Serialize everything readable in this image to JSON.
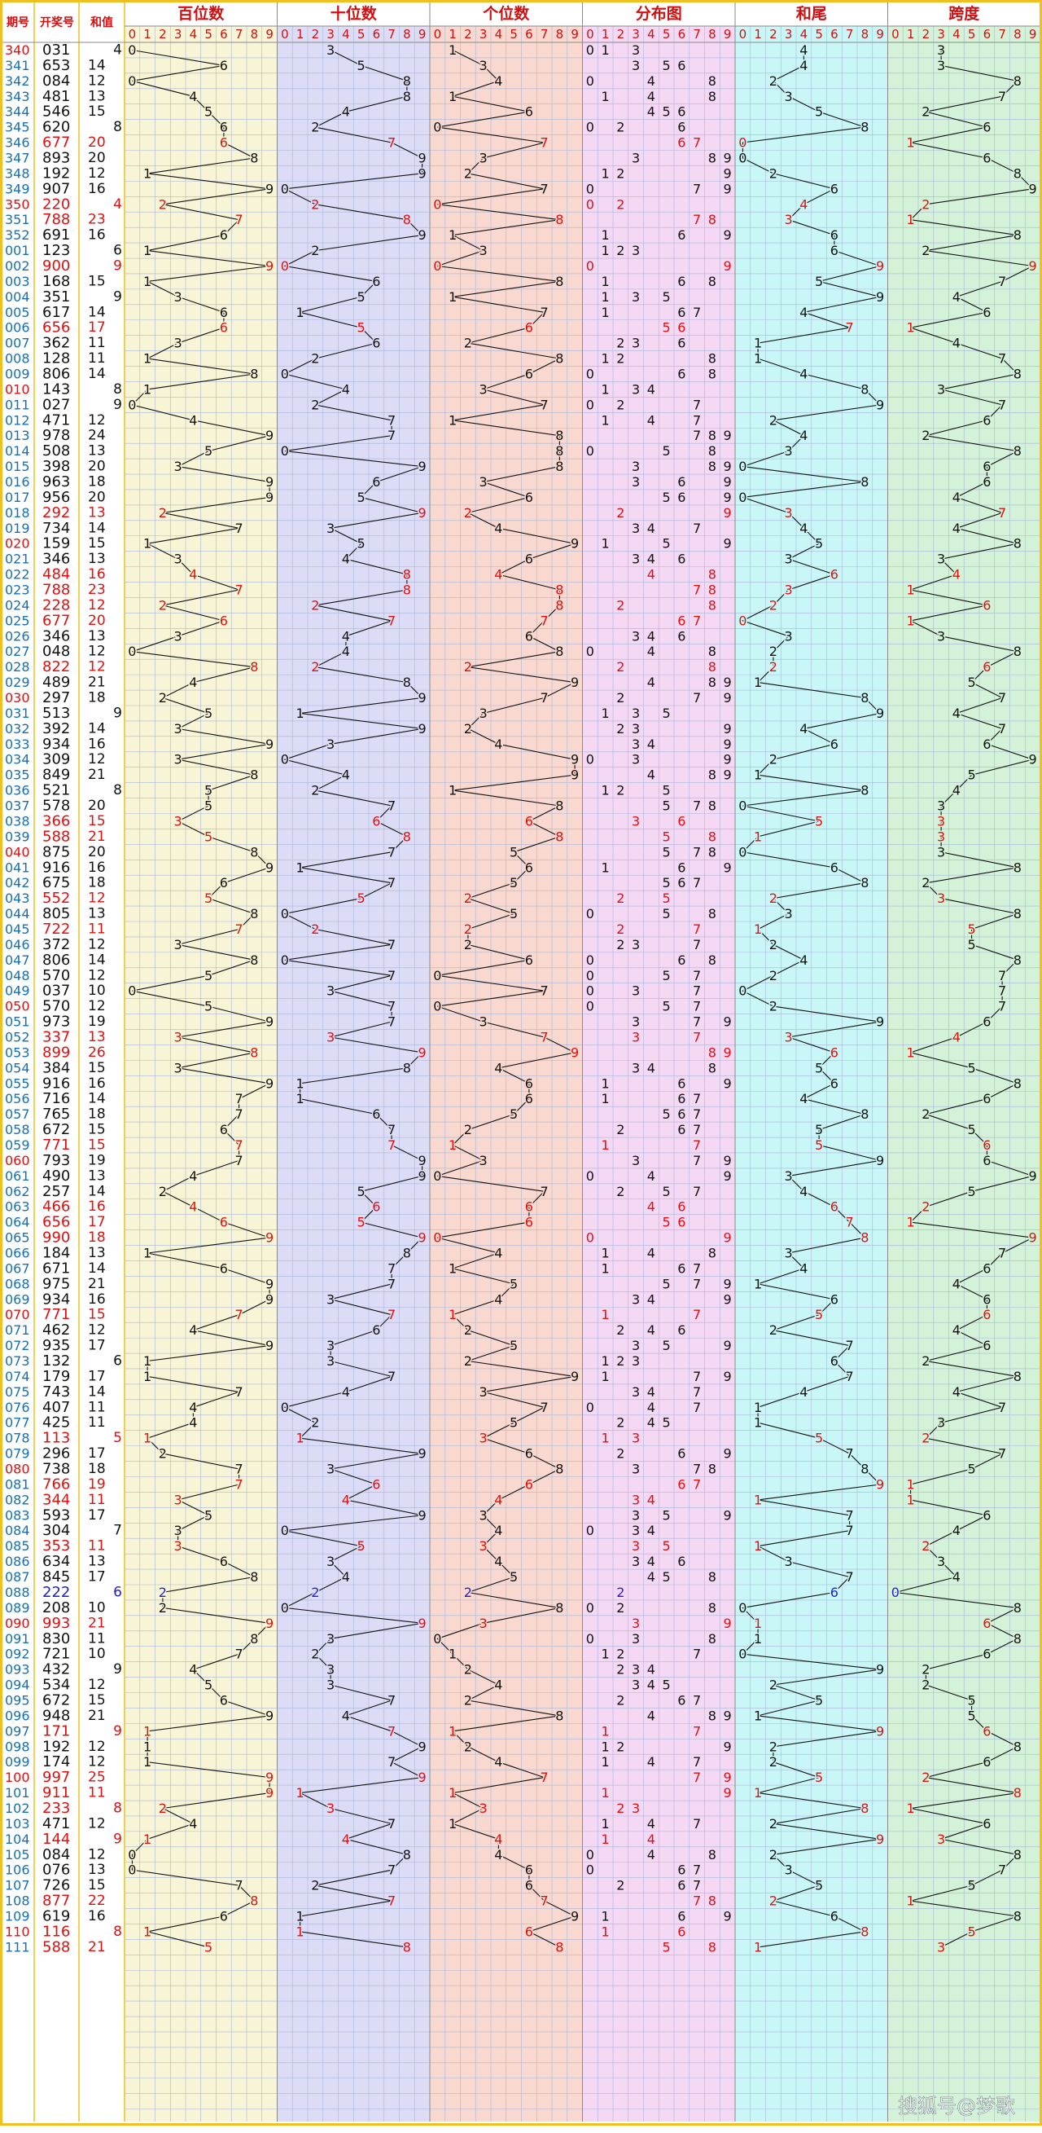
{
  "chart_data": {
    "type": "trend",
    "header": {
      "period": "期号",
      "number": "开奖号",
      "sum": "和值"
    },
    "groups": [
      "百位数",
      "十位数",
      "个位数",
      "分布图",
      "和尾",
      "跨度"
    ],
    "digits": [
      0,
      1,
      2,
      3,
      4,
      5,
      6,
      7,
      8,
      9
    ],
    "colors": {
      "line": "#111111",
      "text": "#111111",
      "pair": "#e01010",
      "leopard": "#2020d0",
      "period": "#1a6fb0",
      "period_mark": "#e01010",
      "header": "#d01010",
      "grid": "#a9b6d8",
      "border": "#efc020"
    },
    "group_backgrounds": [
      "#f8f5d6",
      "#dcdcf7",
      "#f8d8cf",
      "#f4d8f4",
      "#c9f7f7",
      "#d3f2d8"
    ],
    "rows": [
      [
        "340",
        "031",
        [
          0,
          3,
          1
        ],
        4,
        4,
        3
      ],
      [
        "341",
        "653",
        [
          6,
          5,
          3
        ],
        14,
        4,
        3
      ],
      [
        "342",
        "084",
        [
          0,
          8,
          4
        ],
        12,
        2,
        8
      ],
      [
        "343",
        "481",
        [
          4,
          8,
          1
        ],
        13,
        3,
        7
      ],
      [
        "344",
        "546",
        [
          5,
          4,
          6
        ],
        15,
        5,
        2
      ],
      [
        "345",
        "620",
        [
          6,
          2,
          0
        ],
        8,
        8,
        6
      ],
      [
        "346",
        "677",
        [
          6,
          7,
          7
        ],
        20,
        0,
        1
      ],
      [
        "347",
        "893",
        [
          8,
          9,
          3
        ],
        20,
        0,
        6
      ],
      [
        "348",
        "192",
        [
          1,
          9,
          2
        ],
        12,
        2,
        8
      ],
      [
        "349",
        "907",
        [
          9,
          0,
          7
        ],
        16,
        6,
        9
      ],
      [
        "350",
        "220",
        [
          2,
          2,
          0
        ],
        4,
        4,
        2
      ],
      [
        "351",
        "788",
        [
          7,
          8,
          8
        ],
        23,
        3,
        1
      ],
      [
        "352",
        "691",
        [
          6,
          9,
          1
        ],
        16,
        6,
        8
      ],
      [
        "001",
        "123",
        [
          1,
          2,
          3
        ],
        6,
        6,
        2
      ],
      [
        "002",
        "900",
        [
          9,
          0,
          0
        ],
        9,
        9,
        9
      ],
      [
        "003",
        "168",
        [
          1,
          6,
          8
        ],
        15,
        5,
        7
      ],
      [
        "004",
        "351",
        [
          3,
          5,
          1
        ],
        9,
        9,
        4
      ],
      [
        "005",
        "617",
        [
          6,
          1,
          7
        ],
        14,
        4,
        6
      ],
      [
        "006",
        "656",
        [
          6,
          5,
          6
        ],
        17,
        7,
        1
      ],
      [
        "007",
        "362",
        [
          3,
          6,
          2
        ],
        11,
        1,
        4
      ],
      [
        "008",
        "128",
        [
          1,
          2,
          8
        ],
        11,
        1,
        7
      ],
      [
        "009",
        "806",
        [
          8,
          0,
          6
        ],
        14,
        4,
        8
      ],
      [
        "010",
        "143",
        [
          1,
          4,
          3
        ],
        8,
        8,
        3
      ],
      [
        "011",
        "027",
        [
          0,
          2,
          7
        ],
        9,
        9,
        7
      ],
      [
        "012",
        "471",
        [
          4,
          7,
          1
        ],
        12,
        2,
        6
      ],
      [
        "013",
        "978",
        [
          9,
          7,
          8
        ],
        24,
        4,
        2
      ],
      [
        "014",
        "508",
        [
          5,
          0,
          8
        ],
        13,
        3,
        8
      ],
      [
        "015",
        "398",
        [
          3,
          9,
          8
        ],
        20,
        0,
        6
      ],
      [
        "016",
        "963",
        [
          9,
          6,
          3
        ],
        18,
        8,
        6
      ],
      [
        "017",
        "956",
        [
          9,
          5,
          6
        ],
        20,
        0,
        4
      ],
      [
        "018",
        "292",
        [
          2,
          9,
          2
        ],
        13,
        3,
        7
      ],
      [
        "019",
        "734",
        [
          7,
          3,
          4
        ],
        14,
        4,
        4
      ],
      [
        "020",
        "159",
        [
          1,
          5,
          9
        ],
        15,
        5,
        8
      ],
      [
        "021",
        "346",
        [
          3,
          4,
          6
        ],
        13,
        3,
        3
      ],
      [
        "022",
        "484",
        [
          4,
          8,
          4
        ],
        16,
        6,
        4
      ],
      [
        "023",
        "788",
        [
          7,
          8,
          8
        ],
        23,
        3,
        1
      ],
      [
        "024",
        "228",
        [
          2,
          2,
          8
        ],
        12,
        2,
        6
      ],
      [
        "025",
        "677",
        [
          6,
          7,
          7
        ],
        20,
        0,
        1
      ],
      [
        "026",
        "346",
        [
          3,
          4,
          6
        ],
        13,
        3,
        3
      ],
      [
        "027",
        "048",
        [
          0,
          4,
          8
        ],
        12,
        2,
        8
      ],
      [
        "028",
        "822",
        [
          8,
          2,
          2
        ],
        12,
        2,
        6
      ],
      [
        "029",
        "489",
        [
          4,
          8,
          9
        ],
        21,
        1,
        5
      ],
      [
        "030",
        "297",
        [
          2,
          9,
          7
        ],
        18,
        8,
        7
      ],
      [
        "031",
        "513",
        [
          5,
          1,
          3
        ],
        9,
        9,
        4
      ],
      [
        "032",
        "392",
        [
          3,
          9,
          2
        ],
        14,
        4,
        7
      ],
      [
        "033",
        "934",
        [
          9,
          3,
          4
        ],
        16,
        6,
        6
      ],
      [
        "034",
        "309",
        [
          3,
          0,
          9
        ],
        12,
        2,
        9
      ],
      [
        "035",
        "849",
        [
          8,
          4,
          9
        ],
        21,
        1,
        5
      ],
      [
        "036",
        "521",
        [
          5,
          2,
          1
        ],
        8,
        8,
        4
      ],
      [
        "037",
        "578",
        [
          5,
          7,
          8
        ],
        20,
        0,
        3
      ],
      [
        "038",
        "366",
        [
          3,
          6,
          6
        ],
        15,
        5,
        3
      ],
      [
        "039",
        "588",
        [
          5,
          8,
          8
        ],
        21,
        1,
        3
      ],
      [
        "040",
        "875",
        [
          8,
          7,
          5
        ],
        20,
        0,
        3
      ],
      [
        "041",
        "916",
        [
          9,
          1,
          6
        ],
        16,
        6,
        8
      ],
      [
        "042",
        "675",
        [
          6,
          7,
          5
        ],
        18,
        8,
        2
      ],
      [
        "043",
        "552",
        [
          5,
          5,
          2
        ],
        12,
        2,
        3
      ],
      [
        "044",
        "805",
        [
          8,
          0,
          5
        ],
        13,
        3,
        8
      ],
      [
        "045",
        "722",
        [
          7,
          2,
          2
        ],
        11,
        1,
        5
      ],
      [
        "046",
        "372",
        [
          3,
          7,
          2
        ],
        12,
        2,
        5
      ],
      [
        "047",
        "806",
        [
          8,
          0,
          6
        ],
        14,
        4,
        8
      ],
      [
        "048",
        "570",
        [
          5,
          7,
          0
        ],
        12,
        2,
        7
      ],
      [
        "049",
        "037",
        [
          0,
          3,
          7
        ],
        10,
        0,
        7
      ],
      [
        "050",
        "570",
        [
          5,
          7,
          0
        ],
        12,
        2,
        7
      ],
      [
        "051",
        "973",
        [
          9,
          7,
          3
        ],
        19,
        9,
        6
      ],
      [
        "052",
        "337",
        [
          3,
          3,
          7
        ],
        13,
        3,
        4
      ],
      [
        "053",
        "899",
        [
          8,
          9,
          9
        ],
        26,
        6,
        1
      ],
      [
        "054",
        "384",
        [
          3,
          8,
          4
        ],
        15,
        5,
        5
      ],
      [
        "055",
        "916",
        [
          9,
          1,
          6
        ],
        16,
        6,
        8
      ],
      [
        "056",
        "716",
        [
          7,
          1,
          6
        ],
        14,
        4,
        6
      ],
      [
        "057",
        "765",
        [
          7,
          6,
          5
        ],
        18,
        8,
        2
      ],
      [
        "058",
        "672",
        [
          6,
          7,
          2
        ],
        15,
        5,
        5
      ],
      [
        "059",
        "771",
        [
          7,
          7,
          1
        ],
        15,
        5,
        6
      ],
      [
        "060",
        "793",
        [
          7,
          9,
          3
        ],
        19,
        9,
        6
      ],
      [
        "061",
        "490",
        [
          4,
          9,
          0
        ],
        13,
        3,
        9
      ],
      [
        "062",
        "257",
        [
          2,
          5,
          7
        ],
        14,
        4,
        5
      ],
      [
        "063",
        "466",
        [
          4,
          6,
          6
        ],
        16,
        6,
        2
      ],
      [
        "064",
        "656",
        [
          6,
          5,
          6
        ],
        17,
        7,
        1
      ],
      [
        "065",
        "990",
        [
          9,
          9,
          0
        ],
        18,
        8,
        9
      ],
      [
        "066",
        "184",
        [
          1,
          8,
          4
        ],
        13,
        3,
        7
      ],
      [
        "067",
        "671",
        [
          6,
          7,
          1
        ],
        14,
        4,
        6
      ],
      [
        "068",
        "975",
        [
          9,
          7,
          5
        ],
        21,
        1,
        4
      ],
      [
        "069",
        "934",
        [
          9,
          3,
          4
        ],
        16,
        6,
        6
      ],
      [
        "070",
        "771",
        [
          7,
          7,
          1
        ],
        15,
        5,
        6
      ],
      [
        "071",
        "462",
        [
          4,
          6,
          2
        ],
        12,
        2,
        4
      ],
      [
        "072",
        "935",
        [
          9,
          3,
          5
        ],
        17,
        7,
        6
      ],
      [
        "073",
        "132",
        [
          1,
          3,
          2
        ],
        6,
        6,
        2
      ],
      [
        "074",
        "179",
        [
          1,
          7,
          9
        ],
        17,
        7,
        8
      ],
      [
        "075",
        "743",
        [
          7,
          4,
          3
        ],
        14,
        4,
        4
      ],
      [
        "076",
        "407",
        [
          4,
          0,
          7
        ],
        11,
        1,
        7
      ],
      [
        "077",
        "425",
        [
          4,
          2,
          5
        ],
        11,
        1,
        3
      ],
      [
        "078",
        "113",
        [
          1,
          1,
          3
        ],
        5,
        5,
        2
      ],
      [
        "079",
        "296",
        [
          2,
          9,
          6
        ],
        17,
        7,
        7
      ],
      [
        "080",
        "738",
        [
          7,
          3,
          8
        ],
        18,
        8,
        5
      ],
      [
        "081",
        "766",
        [
          7,
          6,
          6
        ],
        19,
        9,
        1
      ],
      [
        "082",
        "344",
        [
          3,
          4,
          4
        ],
        11,
        1,
        1
      ],
      [
        "083",
        "593",
        [
          5,
          9,
          3
        ],
        17,
        7,
        6
      ],
      [
        "084",
        "304",
        [
          3,
          0,
          4
        ],
        7,
        7,
        4
      ],
      [
        "085",
        "353",
        [
          3,
          5,
          3
        ],
        11,
        1,
        2
      ],
      [
        "086",
        "634",
        [
          6,
          3,
          4
        ],
        13,
        3,
        3
      ],
      [
        "087",
        "845",
        [
          8,
          4,
          5
        ],
        17,
        7,
        4
      ],
      [
        "088",
        "222",
        [
          2,
          2,
          2
        ],
        6,
        6,
        0
      ],
      [
        "089",
        "208",
        [
          2,
          0,
          8
        ],
        10,
        0,
        8
      ],
      [
        "090",
        "993",
        [
          9,
          9,
          3
        ],
        21,
        1,
        6
      ],
      [
        "091",
        "830",
        [
          8,
          3,
          0
        ],
        11,
        1,
        8
      ],
      [
        "092",
        "721",
        [
          7,
          2,
          1
        ],
        10,
        0,
        6
      ],
      [
        "093",
        "432",
        [
          4,
          3,
          2
        ],
        9,
        9,
        2
      ],
      [
        "094",
        "534",
        [
          5,
          3,
          4
        ],
        12,
        2,
        2
      ],
      [
        "095",
        "672",
        [
          6,
          7,
          2
        ],
        15,
        5,
        5
      ],
      [
        "096",
        "948",
        [
          9,
          4,
          8
        ],
        21,
        1,
        5
      ],
      [
        "097",
        "171",
        [
          1,
          7,
          1
        ],
        9,
        9,
        6
      ],
      [
        "098",
        "192",
        [
          1,
          9,
          2
        ],
        12,
        2,
        8
      ],
      [
        "099",
        "174",
        [
          1,
          7,
          4
        ],
        12,
        2,
        6
      ],
      [
        "100",
        "997",
        [
          9,
          9,
          7
        ],
        25,
        5,
        2
      ],
      [
        "101",
        "911",
        [
          9,
          1,
          1
        ],
        11,
        1,
        8
      ],
      [
        "102",
        "233",
        [
          2,
          3,
          3
        ],
        8,
        8,
        1
      ],
      [
        "103",
        "471",
        [
          4,
          7,
          1
        ],
        12,
        2,
        6
      ],
      [
        "104",
        "144",
        [
          1,
          4,
          4
        ],
        9,
        9,
        3
      ],
      [
        "105",
        "084",
        [
          0,
          8,
          4
        ],
        12,
        2,
        8
      ],
      [
        "106",
        "076",
        [
          0,
          7,
          6
        ],
        13,
        3,
        7
      ],
      [
        "107",
        "726",
        [
          7,
          2,
          6
        ],
        15,
        5,
        5
      ],
      [
        "108",
        "877",
        [
          8,
          7,
          7
        ],
        22,
        2,
        1
      ],
      [
        "109",
        "619",
        [
          6,
          1,
          9
        ],
        16,
        6,
        8
      ],
      [
        "110",
        "116",
        [
          1,
          1,
          6
        ],
        8,
        8,
        5
      ],
      [
        "111",
        "588",
        [
          5,
          8,
          8
        ],
        21,
        1,
        3
      ]
    ],
    "watermark": "搜狐号@梦歌"
  }
}
